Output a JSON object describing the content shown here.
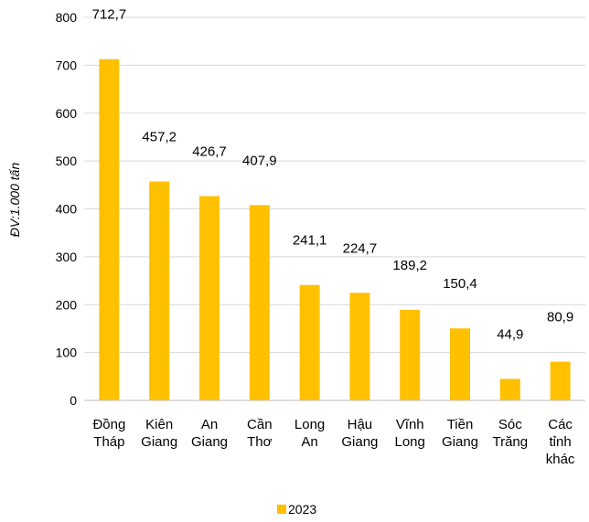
{
  "chart_data": {
    "type": "bar",
    "ylabel": "ĐV:1.000 tấn",
    "ylim": [
      0,
      800
    ],
    "yticks": [
      "0",
      "100",
      "200",
      "300",
      "400",
      "500",
      "600",
      "700",
      "800"
    ],
    "categories": [
      [
        "Đồng",
        "Tháp"
      ],
      [
        "Kiên",
        "Giang"
      ],
      [
        "An",
        "Giang"
      ],
      [
        "Cần",
        "Thơ"
      ],
      [
        "Long",
        "An"
      ],
      [
        "Hậu",
        "Giang"
      ],
      [
        "Vĩnh",
        "Long"
      ],
      [
        "Tiền",
        "Giang"
      ],
      [
        "Sóc",
        "Trăng"
      ],
      [
        "Các",
        "tỉnh",
        "khác"
      ]
    ],
    "values": [
      712.7,
      457.2,
      426.7,
      407.9,
      241.1,
      224.7,
      189.2,
      150.4,
      44.9,
      80.9
    ],
    "value_labels": [
      "712,7",
      "457,2",
      "426,7",
      "407,9",
      "241,1",
      "224,7",
      "189,2",
      "150,4",
      "44,9",
      "80,9"
    ],
    "series": [
      {
        "name": "2023",
        "color": "#FFC000"
      }
    ],
    "grid": true,
    "gridColor": "#d9d9d9",
    "axisColor": "#bfbfbf",
    "legend_position": "bottom"
  }
}
